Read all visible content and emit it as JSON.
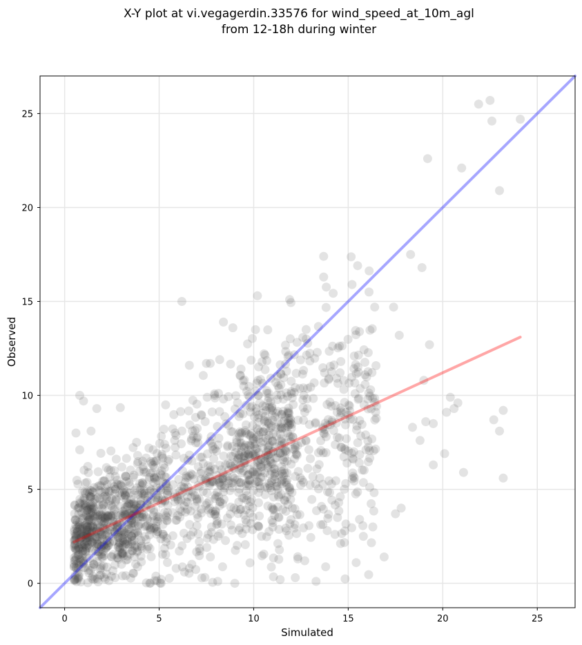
{
  "chart_data": {
    "type": "scatter",
    "title": "X-Y plot at vi.vegagerdin.33576 for wind_speed_at_10m_agl",
    "subtitle": "from 12-18h during winter",
    "xlabel": "Simulated",
    "ylabel": "Observed",
    "xlim": [
      -1.3,
      27
    ],
    "ylim": [
      -1.3,
      27
    ],
    "xticks": [
      0,
      5,
      10,
      15,
      20,
      25
    ],
    "yticks": [
      0,
      5,
      10,
      15,
      20,
      25
    ],
    "grid": true,
    "point_color": "#404040",
    "point_alpha": 0.15,
    "reference_line": {
      "color": "#0000ff",
      "alpha": 0.35,
      "x": [
        -1.3,
        27
      ],
      "y": [
        -1.3,
        27
      ]
    },
    "fit_line": {
      "color": "#ff0000",
      "alpha": 0.35,
      "x": [
        0.5,
        24.1
      ],
      "y": [
        2.2,
        13.1
      ]
    },
    "cluster_model": {
      "n": 1700,
      "seed": 33576,
      "x_distribution": "lognormal-like, dense 0.5-16",
      "y_relation": "y = 2.0 + 0.46 x + noise"
    },
    "highlight_points": [
      {
        "x": 22.5,
        "y": 25.7
      },
      {
        "x": 21.9,
        "y": 25.5
      },
      {
        "x": 22.6,
        "y": 24.6
      },
      {
        "x": 24.1,
        "y": 24.7
      },
      {
        "x": 19.2,
        "y": 22.6
      },
      {
        "x": 21.0,
        "y": 22.1
      },
      {
        "x": 23.0,
        "y": 20.9
      },
      {
        "x": 18.3,
        "y": 17.5
      },
      {
        "x": 18.9,
        "y": 16.8
      },
      {
        "x": 13.7,
        "y": 17.4
      },
      {
        "x": 13.7,
        "y": 16.3
      },
      {
        "x": 6.2,
        "y": 15.0
      },
      {
        "x": 10.2,
        "y": 15.3
      },
      {
        "x": 11.9,
        "y": 15.1
      },
      {
        "x": 15.2,
        "y": 15.9
      },
      {
        "x": 16.1,
        "y": 15.5
      },
      {
        "x": 16.4,
        "y": 14.7
      },
      {
        "x": 17.4,
        "y": 14.7
      },
      {
        "x": 19.3,
        "y": 12.7
      },
      {
        "x": 17.7,
        "y": 13.2
      },
      {
        "x": 19.0,
        "y": 10.8
      },
      {
        "x": 20.2,
        "y": 9.1
      },
      {
        "x": 20.4,
        "y": 9.9
      },
      {
        "x": 20.6,
        "y": 9.3
      },
      {
        "x": 20.8,
        "y": 9.6
      },
      {
        "x": 22.7,
        "y": 8.7
      },
      {
        "x": 23.0,
        "y": 8.1
      },
      {
        "x": 23.2,
        "y": 9.2
      },
      {
        "x": 23.2,
        "y": 5.6
      },
      {
        "x": 21.1,
        "y": 5.9
      },
      {
        "x": 20.1,
        "y": 6.9
      },
      {
        "x": 19.5,
        "y": 6.3
      },
      {
        "x": 18.8,
        "y": 7.6
      },
      {
        "x": 19.1,
        "y": 8.6
      },
      {
        "x": 19.5,
        "y": 8.5
      },
      {
        "x": 18.4,
        "y": 8.3
      },
      {
        "x": 17.5,
        "y": 3.7
      },
      {
        "x": 17.8,
        "y": 4.0
      },
      {
        "x": 16.9,
        "y": 1.4
      },
      {
        "x": 16.3,
        "y": 3.0
      },
      {
        "x": 15.8,
        "y": 2.5
      },
      {
        "x": 15.6,
        "y": 3.4
      },
      {
        "x": 0.8,
        "y": 10.0
      },
      {
        "x": 1.0,
        "y": 9.7
      },
      {
        "x": 1.4,
        "y": 8.1
      },
      {
        "x": 1.7,
        "y": 9.3
      },
      {
        "x": 0.6,
        "y": 8.0
      },
      {
        "x": 0.8,
        "y": 7.1
      },
      {
        "x": 7.7,
        "y": 11.7
      },
      {
        "x": 8.2,
        "y": 11.9
      },
      {
        "x": 8.4,
        "y": 13.9
      },
      {
        "x": 8.9,
        "y": 13.6
      },
      {
        "x": 6.6,
        "y": 11.6
      },
      {
        "x": 7.5,
        "y": 11.7
      },
      {
        "x": 13.3,
        "y": 0.1
      },
      {
        "x": 12.2,
        "y": 0.3
      },
      {
        "x": 11.4,
        "y": 0.2
      },
      {
        "x": 8.1,
        "y": 0.1
      },
      {
        "x": 9.0,
        "y": 0.0
      },
      {
        "x": 4.5,
        "y": 0.0
      },
      {
        "x": 5.1,
        "y": 0.0
      },
      {
        "x": 14.3,
        "y": 2.6
      },
      {
        "x": 12.7,
        "y": 1.2
      }
    ]
  }
}
